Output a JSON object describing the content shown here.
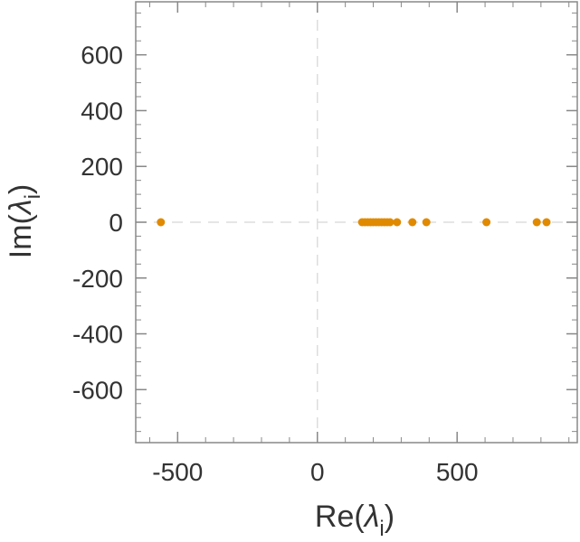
{
  "chart_data": {
    "type": "scatter",
    "title": "",
    "xlabel": "Re(λi)",
    "ylabel": "Im(λi)",
    "axis_label_main": {
      "x_pre": "Re(",
      "y_pre": "Im(",
      "lambda": "λ",
      "sub": "i",
      "close": ")"
    },
    "xlim": [
      -650,
      930
    ],
    "ylim": [
      -790,
      790
    ],
    "xticks": [
      -500,
      0,
      500
    ],
    "xtick_labels": [
      "-500",
      "0",
      "500"
    ],
    "yticks": [
      -600,
      -400,
      -200,
      0,
      200,
      400,
      600
    ],
    "ytick_labels": [
      "-600",
      "-400",
      "-200",
      "0",
      "200",
      "400",
      "600"
    ],
    "x_minor_step": 100,
    "y_minor_step": 50,
    "grid": false,
    "zero_lines": true,
    "legend": "none",
    "marker_color": "#E08A00",
    "zero_line_color": "#DDDDDD",
    "axis_color": "#888888",
    "series": [
      {
        "x": [
          -560,
          160,
          170,
          180,
          190,
          200,
          210,
          220,
          230,
          240,
          250,
          260,
          285,
          340,
          390,
          605,
          785,
          820
        ],
        "y": [
          0,
          0,
          0,
          0,
          0,
          0,
          0,
          0,
          0,
          0,
          0,
          0,
          0,
          0,
          0,
          0,
          0,
          0
        ]
      }
    ]
  }
}
